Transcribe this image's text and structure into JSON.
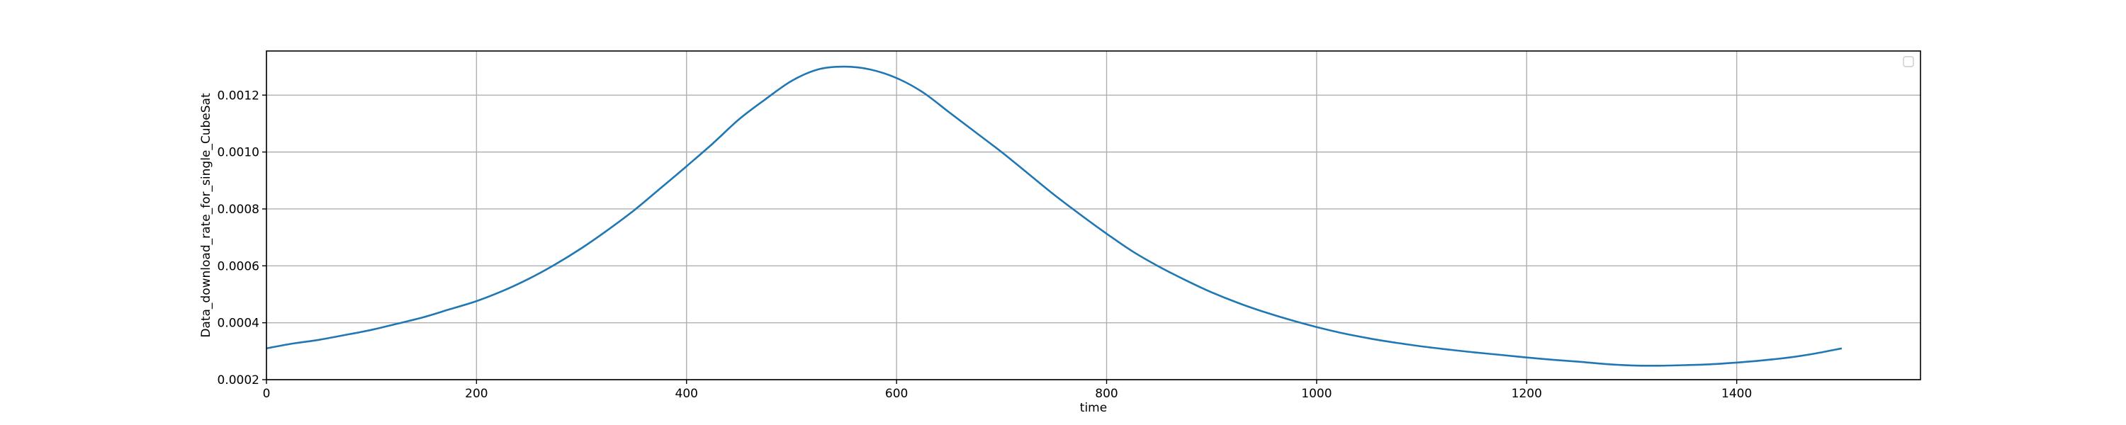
{
  "chart_data": {
    "type": "line",
    "xlabel": "time",
    "ylabel": "Data_download_rate_for_single_CubeSat",
    "xlim": [
      0,
      1575
    ],
    "ylim": [
      0.0002,
      0.001355
    ],
    "xticks": [
      0,
      200,
      400,
      600,
      800,
      1000,
      1200,
      1400
    ],
    "yticks": [
      0.0002,
      0.0004,
      0.0006,
      0.0008,
      0.001,
      0.0012
    ],
    "ytick_labels": [
      "0.0002",
      "0.0004",
      "0.0006",
      "0.0008",
      "0.0010",
      "0.0012"
    ],
    "grid": true,
    "legend": "top-right",
    "series": [
      {
        "color": "#1f77b4",
        "x": [
          0,
          25,
          50,
          75,
          100,
          125,
          150,
          175,
          200,
          225,
          250,
          275,
          300,
          325,
          350,
          375,
          400,
          425,
          450,
          475,
          500,
          525,
          550,
          575,
          600,
          625,
          650,
          675,
          700,
          725,
          750,
          775,
          800,
          825,
          850,
          875,
          900,
          925,
          950,
          975,
          1000,
          1025,
          1050,
          1075,
          1100,
          1125,
          1150,
          1175,
          1200,
          1225,
          1250,
          1275,
          1300,
          1325,
          1350,
          1375,
          1400,
          1425,
          1450,
          1475,
          1500
        ],
        "y": [
          0.00031,
          0.000327,
          0.00034,
          0.000357,
          0.000375,
          0.000397,
          0.00042,
          0.000448,
          0.000476,
          0.000512,
          0.000555,
          0.000605,
          0.000662,
          0.000726,
          0.000795,
          0.000872,
          0.00095,
          0.00103,
          0.001115,
          0.001185,
          0.00125,
          0.00129,
          0.0013,
          0.00129,
          0.00126,
          0.00121,
          0.00114,
          0.00107,
          0.001,
          0.000925,
          0.00085,
          0.00078,
          0.000713,
          0.00065,
          0.000597,
          0.00055,
          0.000507,
          0.00047,
          0.000438,
          0.00041,
          0.000385,
          0.000363,
          0.000345,
          0.00033,
          0.000317,
          0.000306,
          0.000296,
          0.000287,
          0.000278,
          0.00027,
          0.000263,
          0.000255,
          0.00025,
          0.000249,
          0.000251,
          0.000254,
          0.00026,
          0.000268,
          0.000278,
          0.000292,
          0.00031
        ]
      }
    ]
  }
}
